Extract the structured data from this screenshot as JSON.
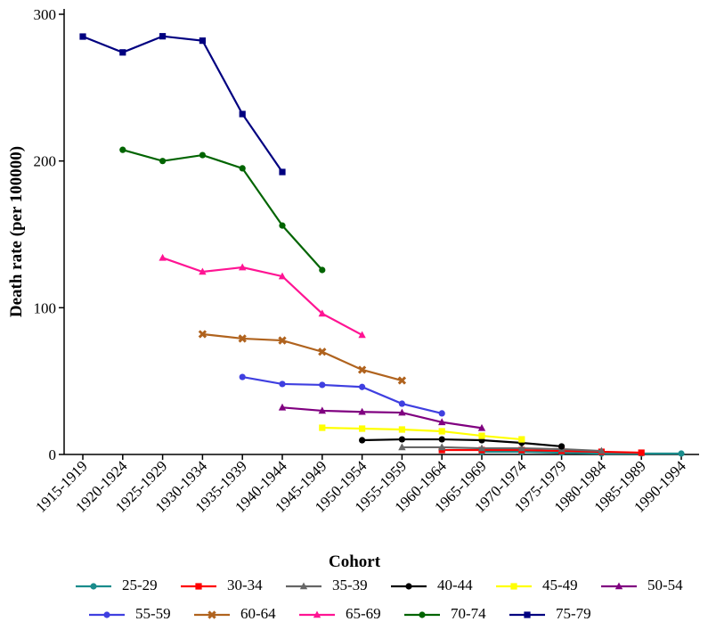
{
  "chart_data": {
    "type": "line",
    "xlabel": "Cohort",
    "ylabel": "Death rate (per 100000)",
    "categories": [
      "1915-1919",
      "1920-1924",
      "1925-1929",
      "1930-1934",
      "1935-1939",
      "1940-1944",
      "1945-1949",
      "1950-1954",
      "1955-1959",
      "1960-1964",
      "1965-1969",
      "1970-1974",
      "1975-1979",
      "1980-1984",
      "1985-1989",
      "1990-1994"
    ],
    "ylim": [
      0,
      300
    ],
    "yticks": [
      0,
      100,
      200,
      300
    ],
    "series": [
      {
        "name": "25-29",
        "color": "#1a8c8c",
        "marker": "circle",
        "values": [
          null,
          null,
          null,
          null,
          null,
          null,
          null,
          null,
          null,
          null,
          1.8,
          1.8,
          1.2,
          0.6,
          0.6,
          0.6
        ]
      },
      {
        "name": "30-34",
        "color": "#ff0000",
        "marker": "square",
        "values": [
          null,
          null,
          null,
          null,
          null,
          null,
          null,
          null,
          null,
          3.0,
          3.0,
          3.0,
          2.4,
          1.8,
          1.2,
          null
        ]
      },
      {
        "name": "35-39",
        "color": "#666666",
        "marker": "triangle",
        "values": [
          null,
          null,
          null,
          null,
          null,
          null,
          null,
          null,
          4.9,
          4.9,
          4.2,
          4.2,
          3.6,
          2.4,
          null,
          null
        ]
      },
      {
        "name": "40-44",
        "color": "#000000",
        "marker": "circle",
        "values": [
          null,
          null,
          null,
          null,
          null,
          null,
          null,
          9.7,
          10.3,
          10.3,
          9.7,
          7.9,
          5.5,
          null,
          null,
          null
        ]
      },
      {
        "name": "45-49",
        "color": "#ffff00",
        "marker": "square",
        "values": [
          null,
          null,
          null,
          null,
          null,
          null,
          18.2,
          17.6,
          17,
          15.8,
          12.7,
          10.3,
          null,
          null,
          null,
          null
        ]
      },
      {
        "name": "50-54",
        "color": "#800080",
        "marker": "triangle",
        "values": [
          null,
          null,
          null,
          null,
          null,
          32,
          29.8,
          29,
          28.5,
          22,
          18,
          null,
          null,
          null,
          null,
          null
        ]
      },
      {
        "name": "55-59",
        "color": "#3f3fe0",
        "marker": "circle",
        "values": [
          null,
          null,
          null,
          null,
          52.8,
          48,
          47.4,
          46,
          34.6,
          28,
          null,
          null,
          null,
          null,
          null,
          null
        ]
      },
      {
        "name": "60-64",
        "color": "#b0631e",
        "marker": "cross",
        "values": [
          null,
          null,
          null,
          82,
          79,
          77.7,
          70,
          57.7,
          50.4,
          null,
          null,
          null,
          null,
          null,
          null,
          null
        ]
      },
      {
        "name": "65-69",
        "color": "#ff1493",
        "marker": "triangle",
        "values": [
          null,
          null,
          134,
          124.5,
          127.5,
          121.4,
          96,
          81.4,
          null,
          null,
          null,
          null,
          null,
          null,
          null,
          null
        ]
      },
      {
        "name": "70-74",
        "color": "#006400",
        "marker": "circle",
        "values": [
          null,
          207.6,
          200,
          204,
          195,
          156,
          125.7,
          null,
          null,
          null,
          null,
          null,
          null,
          null,
          null,
          null
        ]
      },
      {
        "name": "75-79",
        "color": "#000080",
        "marker": "square",
        "values": [
          284.8,
          274,
          285,
          282,
          232,
          192.5,
          null,
          null,
          null,
          null,
          null,
          null,
          null,
          null,
          null,
          null
        ]
      }
    ]
  }
}
